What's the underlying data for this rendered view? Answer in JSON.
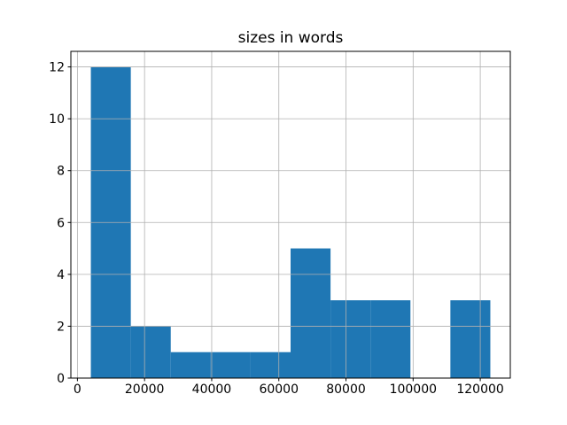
{
  "chart_data": {
    "type": "bar",
    "chart_kind": "histogram",
    "title": "sizes in words",
    "xlabel": "",
    "ylabel": "",
    "bin_edges": [
      4000,
      15900,
      27800,
      39700,
      51600,
      63500,
      75400,
      87300,
      99200,
      111100,
      123000
    ],
    "counts": [
      12,
      2,
      1,
      1,
      1,
      5,
      3,
      3,
      0,
      3
    ],
    "x_ticks": [
      0,
      20000,
      40000,
      60000,
      80000,
      100000,
      120000
    ],
    "x_tick_labels": [
      "0",
      "20000",
      "40000",
      "60000",
      "80000",
      "100000",
      "120000"
    ],
    "y_ticks": [
      0,
      2,
      4,
      6,
      8,
      10,
      12
    ],
    "y_tick_labels": [
      "0",
      "2",
      "4",
      "6",
      "8",
      "10",
      "12"
    ],
    "xlim": [
      -1950,
      128950
    ],
    "ylim": [
      0,
      12.6
    ],
    "grid": true,
    "grid_above_bars": true,
    "legend": null,
    "bar_color": "#1f77b4",
    "grid_color": "#b0b0b0",
    "spine_color": "#000000",
    "text_color": "#000000",
    "background_color": "#ffffff"
  }
}
